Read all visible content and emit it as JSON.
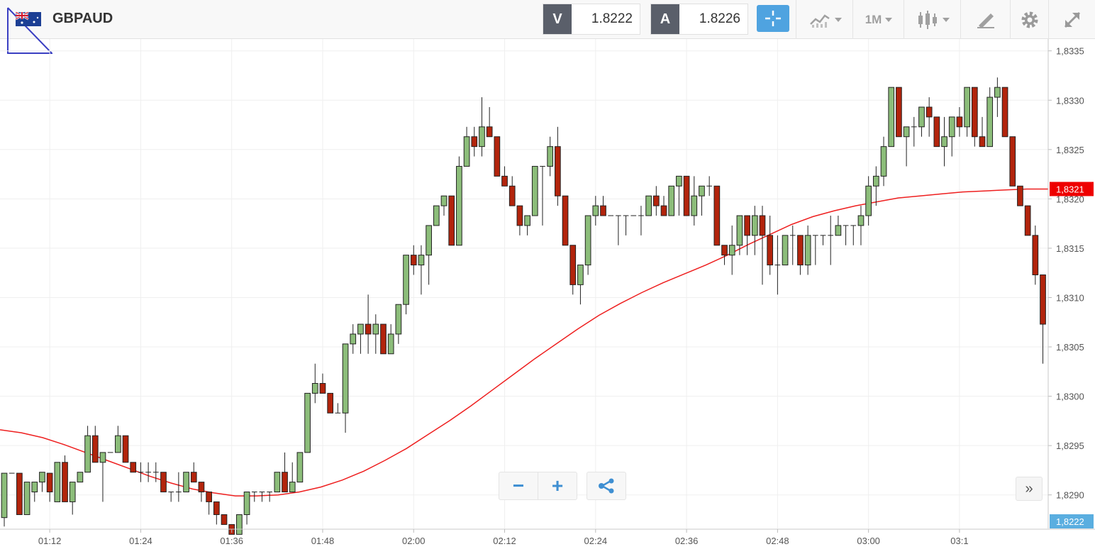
{
  "header": {
    "symbol": "GBPAUD",
    "bid_label": "V",
    "bid_value": "1.8222",
    "ask_label": "A",
    "ask_value": "1.8226",
    "timeframe": "1M"
  },
  "controls": {
    "zoom_out": "−",
    "zoom_in": "+",
    "scroll_right": "»"
  },
  "colors": {
    "bull": "#8cbd7a",
    "bear": "#b2240c",
    "ma": "#ee1f1f",
    "price_tag": "#ee0000",
    "bid_tag": "#5aaee0",
    "accent": "#4fa3e0"
  },
  "chart_data": {
    "type": "candlestick",
    "title": "GBPAUD",
    "timeframe": "1M",
    "xlabel": "",
    "ylabel": "",
    "ylim": [
      1.82866,
      1.83362
    ],
    "x_ticks": [
      "01:12",
      "01:24",
      "01:36",
      "01:48",
      "02:00",
      "02:12",
      "02:24",
      "02:36",
      "02:48",
      "03:00",
      "03:1"
    ],
    "y_ticks": [
      "1,8290",
      "1,8295",
      "1,8300",
      "1,8305",
      "1,8310",
      "1,8315",
      "1,8320",
      "1,8325",
      "1,8330",
      "1,8335"
    ],
    "y_tick_values": [
      1.829,
      1.8295,
      1.83,
      1.8305,
      1.831,
      1.8315,
      1.832,
      1.8325,
      1.833,
      1.8335
    ],
    "last_price_label": "1,8321",
    "last_price": 1.8321,
    "bid_price_label": "1,8222",
    "candles_ohlc": [
      [
        1.82877,
        1.82922,
        1.82868,
        1.82922
      ],
      [
        1.82922,
        1.82922,
        1.82922,
        1.82922
      ],
      [
        1.82922,
        1.82922,
        1.8288,
        1.8288
      ],
      [
        1.8288,
        1.82913,
        1.8288,
        1.82913
      ],
      [
        1.82903,
        1.82913,
        1.82893,
        1.82913
      ],
      [
        1.82913,
        1.82923,
        1.82903,
        1.82923
      ],
      [
        1.82922,
        1.82922,
        1.82893,
        1.82903
      ],
      [
        1.82893,
        1.82933,
        1.82893,
        1.82933
      ],
      [
        1.82933,
        1.8294,
        1.82893,
        1.82893
      ],
      [
        1.82893,
        1.82913,
        1.8288,
        1.82913
      ],
      [
        1.82913,
        1.82923,
        1.82913,
        1.82923
      ],
      [
        1.82923,
        1.8297,
        1.82923,
        1.8296
      ],
      [
        1.8296,
        1.8297,
        1.82933,
        1.82933
      ],
      [
        1.82933,
        1.82943,
        1.82893,
        1.82943
      ],
      [
        1.82943,
        1.82943,
        1.82943,
        1.82943
      ],
      [
        1.82943,
        1.8297,
        1.82943,
        1.8296
      ],
      [
        1.8296,
        1.8296,
        1.82933,
        1.82933
      ],
      [
        1.82933,
        1.82933,
        1.82923,
        1.82923
      ],
      [
        1.82923,
        1.82933,
        1.82913,
        1.82923
      ],
      [
        1.82923,
        1.82933,
        1.82913,
        1.82923
      ],
      [
        1.82923,
        1.82933,
        1.82913,
        1.82923
      ],
      [
        1.82923,
        1.82923,
        1.82903,
        1.82903
      ],
      [
        1.82903,
        1.82903,
        1.82893,
        1.82903
      ],
      [
        1.82903,
        1.82923,
        1.82893,
        1.82903
      ],
      [
        1.82903,
        1.82923,
        1.82903,
        1.82923
      ],
      [
        1.82923,
        1.82933,
        1.82913,
        1.82913
      ],
      [
        1.82913,
        1.82913,
        1.82893,
        1.82903
      ],
      [
        1.82903,
        1.82903,
        1.8288,
        1.82893
      ],
      [
        1.82893,
        1.82893,
        1.8287,
        1.8288
      ],
      [
        1.8288,
        1.8288,
        1.8287,
        1.8287
      ],
      [
        1.8287,
        1.8287,
        1.8286,
        1.8286
      ],
      [
        1.8286,
        1.8288,
        1.8286,
        1.8288
      ],
      [
        1.8288,
        1.82903,
        1.8287,
        1.82903
      ],
      [
        1.82903,
        1.82903,
        1.82893,
        1.82903
      ],
      [
        1.82903,
        1.82903,
        1.82893,
        1.82903
      ],
      [
        1.82903,
        1.82903,
        1.82893,
        1.82903
      ],
      [
        1.82903,
        1.82923,
        1.82903,
        1.82923
      ],
      [
        1.82923,
        1.82943,
        1.82903,
        1.82903
      ],
      [
        1.82903,
        1.82933,
        1.82903,
        1.82913
      ],
      [
        1.82913,
        1.82943,
        1.82913,
        1.82943
      ],
      [
        1.82943,
        1.83003,
        1.82943,
        1.83003
      ],
      [
        1.83003,
        1.83033,
        1.82993,
        1.83013
      ],
      [
        1.83013,
        1.83023,
        1.83003,
        1.83003
      ],
      [
        1.83003,
        1.83003,
        1.82983,
        1.82983
      ],
      [
        1.82983,
        1.82993,
        1.82983,
        1.82983
      ],
      [
        1.82983,
        1.83053,
        1.82963,
        1.83053
      ],
      [
        1.83053,
        1.83073,
        1.83043,
        1.83063
      ],
      [
        1.83063,
        1.83073,
        1.83043,
        1.83073
      ],
      [
        1.83073,
        1.83103,
        1.83043,
        1.83063
      ],
      [
        1.83063,
        1.83083,
        1.83043,
        1.83073
      ],
      [
        1.83073,
        1.83073,
        1.83043,
        1.83043
      ],
      [
        1.83043,
        1.83073,
        1.83043,
        1.83063
      ],
      [
        1.83063,
        1.83093,
        1.83053,
        1.83093
      ],
      [
        1.83093,
        1.83143,
        1.83083,
        1.83143
      ],
      [
        1.83143,
        1.83153,
        1.83123,
        1.83133
      ],
      [
        1.83133,
        1.83153,
        1.83103,
        1.83143
      ],
      [
        1.83143,
        1.83173,
        1.83113,
        1.83173
      ],
      [
        1.83173,
        1.83193,
        1.83173,
        1.83193
      ],
      [
        1.83193,
        1.83203,
        1.83183,
        1.83203
      ],
      [
        1.83203,
        1.83203,
        1.83153,
        1.83153
      ],
      [
        1.83153,
        1.83243,
        1.83153,
        1.83233
      ],
      [
        1.83233,
        1.83273,
        1.83233,
        1.83263
      ],
      [
        1.83263,
        1.83273,
        1.83243,
        1.83253
      ],
      [
        1.83253,
        1.83303,
        1.83243,
        1.83273
      ],
      [
        1.83273,
        1.83293,
        1.83263,
        1.83263
      ],
      [
        1.83263,
        1.83263,
        1.83223,
        1.83223
      ],
      [
        1.83223,
        1.83233,
        1.83213,
        1.83213
      ],
      [
        1.83213,
        1.83223,
        1.83193,
        1.83193
      ],
      [
        1.83193,
        1.83193,
        1.83163,
        1.83173
      ],
      [
        1.83173,
        1.83183,
        1.83163,
        1.83183
      ],
      [
        1.83183,
        1.83233,
        1.83183,
        1.83233
      ],
      [
        1.83233,
        1.83233,
        1.83173,
        1.83233
      ],
      [
        1.83233,
        1.83263,
        1.83223,
        1.83253
      ],
      [
        1.83253,
        1.83273,
        1.83193,
        1.83203
      ],
      [
        1.83203,
        1.83203,
        1.83153,
        1.83153
      ],
      [
        1.83153,
        1.83153,
        1.83103,
        1.83113
      ],
      [
        1.83113,
        1.83133,
        1.83093,
        1.83133
      ],
      [
        1.83133,
        1.83183,
        1.83123,
        1.83183
      ],
      [
        1.83183,
        1.83203,
        1.83173,
        1.83193
      ],
      [
        1.83193,
        1.83203,
        1.83183,
        1.83183
      ],
      [
        1.83183,
        1.83183,
        1.83183,
        1.83183
      ],
      [
        1.83183,
        1.83183,
        1.83153,
        1.83183
      ],
      [
        1.83183,
        1.83183,
        1.83163,
        1.83183
      ],
      [
        1.83183,
        1.83183,
        1.83183,
        1.83183
      ],
      [
        1.83183,
        1.83193,
        1.83163,
        1.83183
      ],
      [
        1.83183,
        1.83203,
        1.83183,
        1.83203
      ],
      [
        1.83203,
        1.83213,
        1.83183,
        1.83193
      ],
      [
        1.83193,
        1.83203,
        1.83183,
        1.83183
      ],
      [
        1.83183,
        1.83213,
        1.83183,
        1.83213
      ],
      [
        1.83213,
        1.83223,
        1.83183,
        1.83223
      ],
      [
        1.83223,
        1.83223,
        1.83183,
        1.83183
      ],
      [
        1.83183,
        1.83223,
        1.83173,
        1.83203
      ],
      [
        1.83203,
        1.83213,
        1.83183,
        1.83213
      ],
      [
        1.83213,
        1.83223,
        1.83203,
        1.83213
      ],
      [
        1.83213,
        1.83213,
        1.83153,
        1.83153
      ],
      [
        1.83153,
        1.83153,
        1.83133,
        1.83143
      ],
      [
        1.83143,
        1.83173,
        1.83123,
        1.83153
      ],
      [
        1.83153,
        1.83183,
        1.83143,
        1.83183
      ],
      [
        1.83183,
        1.83183,
        1.83143,
        1.83163
      ],
      [
        1.83163,
        1.83193,
        1.83143,
        1.83183
      ],
      [
        1.83183,
        1.83193,
        1.83113,
        1.83163
      ],
      [
        1.83163,
        1.83183,
        1.83123,
        1.83133
      ],
      [
        1.83133,
        1.83163,
        1.83103,
        1.83133
      ],
      [
        1.83133,
        1.83163,
        1.83133,
        1.83163
      ],
      [
        1.83163,
        1.83173,
        1.83133,
        1.83163
      ],
      [
        1.83163,
        1.83163,
        1.83123,
        1.83133
      ],
      [
        1.83133,
        1.83173,
        1.83123,
        1.83163
      ],
      [
        1.83163,
        1.83163,
        1.83133,
        1.83163
      ],
      [
        1.83163,
        1.83163,
        1.83153,
        1.83163
      ],
      [
        1.83163,
        1.83183,
        1.83133,
        1.83163
      ],
      [
        1.83163,
        1.83183,
        1.83163,
        1.83173
      ],
      [
        1.83173,
        1.83173,
        1.83153,
        1.83173
      ],
      [
        1.83173,
        1.83173,
        1.83153,
        1.83173
      ],
      [
        1.83173,
        1.83193,
        1.83153,
        1.83183
      ],
      [
        1.83183,
        1.83223,
        1.83173,
        1.83213
      ],
      [
        1.83213,
        1.83233,
        1.83193,
        1.83223
      ],
      [
        1.83223,
        1.83263,
        1.83213,
        1.83253
      ],
      [
        1.83253,
        1.83313,
        1.83253,
        1.83313
      ],
      [
        1.83313,
        1.83313,
        1.83263,
        1.83263
      ],
      [
        1.83263,
        1.83273,
        1.83233,
        1.83273
      ],
      [
        1.83273,
        1.83283,
        1.83253,
        1.83273
      ],
      [
        1.83273,
        1.83293,
        1.83263,
        1.83293
      ],
      [
        1.83293,
        1.83303,
        1.83263,
        1.83283
      ],
      [
        1.83283,
        1.83283,
        1.83253,
        1.83253
      ],
      [
        1.83253,
        1.83283,
        1.83233,
        1.83263
      ],
      [
        1.83263,
        1.83283,
        1.83243,
        1.83283
      ],
      [
        1.83283,
        1.83293,
        1.83263,
        1.83273
      ],
      [
        1.83273,
        1.83313,
        1.83263,
        1.83313
      ],
      [
        1.83313,
        1.83313,
        1.83253,
        1.83263
      ],
      [
        1.83263,
        1.83283,
        1.83253,
        1.83253
      ],
      [
        1.83253,
        1.83313,
        1.83253,
        1.83303
      ],
      [
        1.83303,
        1.83323,
        1.83283,
        1.83313
      ],
      [
        1.83313,
        1.83313,
        1.83263,
        1.83263
      ],
      [
        1.83263,
        1.83263,
        1.83213,
        1.83213
      ],
      [
        1.83213,
        1.83213,
        1.83193,
        1.83193
      ],
      [
        1.83193,
        1.83193,
        1.83163,
        1.83163
      ],
      [
        1.83163,
        1.83173,
        1.83113,
        1.83123
      ],
      [
        1.83123,
        1.83123,
        1.83033,
        1.83073
      ]
    ],
    "moving_average": [
      1.82966,
      1.82963,
      1.82958,
      1.82951,
      1.82943,
      1.82935,
      1.82927,
      1.82919,
      1.82912,
      1.82906,
      1.82902,
      1.82899,
      1.82899,
      1.829,
      1.82903,
      1.82908,
      1.82915,
      1.82924,
      1.82935,
      1.82947,
      1.82961,
      1.82975,
      1.8299,
      1.83006,
      1.83022,
      1.83038,
      1.83053,
      1.83068,
      1.83082,
      1.83094,
      1.83105,
      1.83115,
      1.83124,
      1.83133,
      1.83143,
      1.83154,
      1.83164,
      1.83174,
      1.83182,
      1.83188,
      1.83193,
      1.83197,
      1.83201,
      1.83203,
      1.83205,
      1.83207,
      1.83208,
      1.83209,
      1.8321,
      1.8321
    ]
  }
}
